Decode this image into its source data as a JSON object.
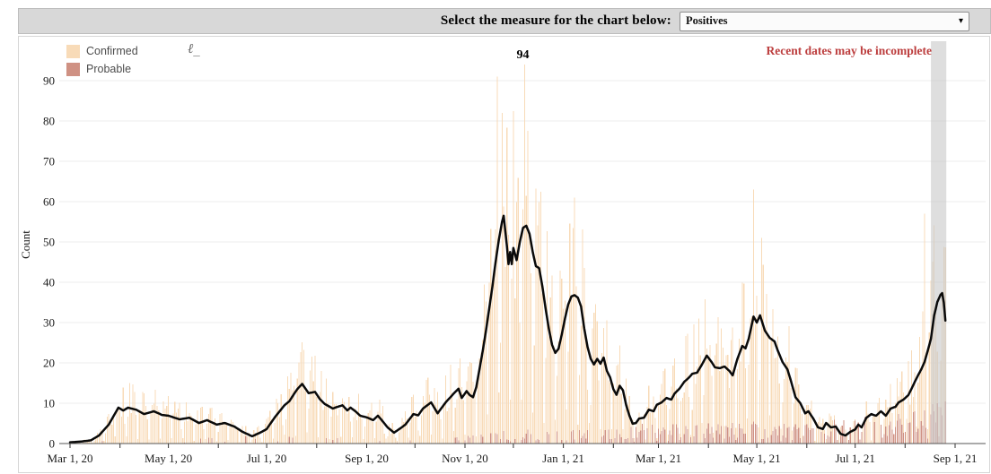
{
  "controls": {
    "label": "Select the measure for the chart below:",
    "dropdown": {
      "value": "Positives",
      "caret_icon": "▾"
    }
  },
  "panel": {
    "legend": [
      {
        "label": "Confirmed",
        "color": "#f8dbb8"
      },
      {
        "label": "Probable",
        "color": "#cf9183"
      }
    ],
    "pencil_glyph": "ℓ_",
    "warning_text": "Recent dates may be incomplete",
    "warning_color": "#bc3d3d"
  },
  "chart_data": {
    "type": "bar",
    "subtype": "daily stacked bars with 7-day average line",
    "title": "Positives",
    "xlabel": "",
    "ylabel": "Count",
    "ylim": [
      0,
      97
    ],
    "y_ticks": [
      0,
      10,
      20,
      30,
      40,
      50,
      60,
      70,
      80,
      90
    ],
    "x_start_date": "2020-03-01",
    "x_end_date": "2021-09-01",
    "x_ticks": [
      {
        "day": 0,
        "label": "Mar 1, 20"
      },
      {
        "day": 31,
        "label": ""
      },
      {
        "day": 61,
        "label": "May 1, 20"
      },
      {
        "day": 92,
        "label": ""
      },
      {
        "day": 122,
        "label": "Jul 1, 20"
      },
      {
        "day": 153,
        "label": ""
      },
      {
        "day": 184,
        "label": "Sep 1, 20"
      },
      {
        "day": 214,
        "label": ""
      },
      {
        "day": 245,
        "label": "Nov 1, 20"
      },
      {
        "day": 275,
        "label": ""
      },
      {
        "day": 306,
        "label": "Jan 1, 21"
      },
      {
        "day": 337,
        "label": ""
      },
      {
        "day": 365,
        "label": "Mar 1, 21"
      },
      {
        "day": 396,
        "label": ""
      },
      {
        "day": 426,
        "label": "May 1, 21"
      },
      {
        "day": 457,
        "label": ""
      },
      {
        "day": 487,
        "label": "Jul 1, 21"
      },
      {
        "day": 518,
        "label": ""
      },
      {
        "day": 549,
        "label": "Sep 1, 21"
      }
    ],
    "grid": true,
    "legend_position": "top-left",
    "series": [
      {
        "name": "Confirmed",
        "type": "bar",
        "color": "#f8dbb8"
      },
      {
        "name": "Probable",
        "type": "bar",
        "color": "#cf9183"
      },
      {
        "name": "7-day average",
        "type": "line",
        "color": "#0a0a0a"
      }
    ],
    "avg_line_points_day_value": [
      [
        0,
        0.3
      ],
      [
        7,
        0.5
      ],
      [
        13,
        0.8
      ],
      [
        18,
        2
      ],
      [
        24,
        4.7
      ],
      [
        30,
        8.9
      ],
      [
        33,
        8.2
      ],
      [
        36,
        8.9
      ],
      [
        41,
        8.4
      ],
      [
        46,
        7.3
      ],
      [
        52,
        8
      ],
      [
        57,
        7.1
      ],
      [
        61,
        6.9
      ],
      [
        68,
        6
      ],
      [
        74,
        6.4
      ],
      [
        80,
        5.1
      ],
      [
        85,
        5.8
      ],
      [
        91,
        4.7
      ],
      [
        96,
        5.1
      ],
      [
        102,
        4.2
      ],
      [
        107,
        2.9
      ],
      [
        113,
        1.8
      ],
      [
        119,
        2.9
      ],
      [
        122,
        3.6
      ],
      [
        127,
        6.5
      ],
      [
        133,
        9.5
      ],
      [
        136,
        10.5
      ],
      [
        141,
        13.5
      ],
      [
        144,
        14.8
      ],
      [
        148,
        12.5
      ],
      [
        152,
        12.8
      ],
      [
        155,
        11
      ],
      [
        158,
        9.8
      ],
      [
        163,
        8.7
      ],
      [
        169,
        9.5
      ],
      [
        172,
        8.2
      ],
      [
        174,
        8.9
      ],
      [
        177,
        8
      ],
      [
        180,
        6.9
      ],
      [
        184,
        6.5
      ],
      [
        188,
        5.8
      ],
      [
        191,
        6.9
      ],
      [
        194,
        5.5
      ],
      [
        197,
        4
      ],
      [
        201,
        2.7
      ],
      [
        205,
        3.8
      ],
      [
        208,
        4.7
      ],
      [
        213,
        7.3
      ],
      [
        216,
        7
      ],
      [
        219,
        8.7
      ],
      [
        224,
        10.2
      ],
      [
        228,
        7.5
      ],
      [
        233,
        10.2
      ],
      [
        238,
        12.4
      ],
      [
        241,
        13.6
      ],
      [
        243,
        11.3
      ],
      [
        246,
        13
      ],
      [
        248,
        12
      ],
      [
        250,
        11.5
      ],
      [
        252,
        14
      ],
      [
        254,
        18.5
      ],
      [
        256,
        23
      ],
      [
        258,
        28
      ],
      [
        260,
        33.5
      ],
      [
        262,
        39
      ],
      [
        264,
        45
      ],
      [
        266,
        50.5
      ],
      [
        268,
        55
      ],
      [
        269,
        56.5
      ],
      [
        271,
        49
      ],
      [
        272,
        44.5
      ],
      [
        273,
        47.5
      ],
      [
        274,
        44.5
      ],
      [
        275,
        48.5
      ],
      [
        277,
        45.5
      ],
      [
        279,
        50
      ],
      [
        281,
        53.5
      ],
      [
        283,
        54
      ],
      [
        285,
        52
      ],
      [
        287,
        47.5
      ],
      [
        289,
        44
      ],
      [
        291,
        43.5
      ],
      [
        293,
        39
      ],
      [
        295,
        33.5
      ],
      [
        297,
        28.5
      ],
      [
        299,
        24.5
      ],
      [
        301,
        22.5
      ],
      [
        303,
        23.5
      ],
      [
        305,
        27
      ],
      [
        307,
        31
      ],
      [
        309,
        34.5
      ],
      [
        311,
        36.5
      ],
      [
        313,
        36.8
      ],
      [
        315,
        36.2
      ],
      [
        317,
        34
      ],
      [
        319,
        28.5
      ],
      [
        321,
        24
      ],
      [
        323,
        21
      ],
      [
        325,
        19.6
      ],
      [
        327,
        21
      ],
      [
        329,
        19.8
      ],
      [
        331,
        21.3
      ],
      [
        333,
        18
      ],
      [
        335,
        16.4
      ],
      [
        337,
        13.5
      ],
      [
        339,
        12.1
      ],
      [
        341,
        14.3
      ],
      [
        343,
        13.2
      ],
      [
        345,
        9.5
      ],
      [
        347,
        6.9
      ],
      [
        349,
        4.9
      ],
      [
        351,
        5.1
      ],
      [
        353,
        6.2
      ],
      [
        356,
        6.4
      ],
      [
        359,
        8.4
      ],
      [
        362,
        8
      ],
      [
        364,
        9.6
      ],
      [
        367,
        10.2
      ],
      [
        370,
        11.3
      ],
      [
        373,
        10.9
      ],
      [
        375,
        12.4
      ],
      [
        378,
        13.6
      ],
      [
        381,
        15.3
      ],
      [
        384,
        16.4
      ],
      [
        386,
        17.3
      ],
      [
        389,
        17.6
      ],
      [
        392,
        19.6
      ],
      [
        395,
        21.8
      ],
      [
        398,
        20.2
      ],
      [
        400,
        18.9
      ],
      [
        403,
        18.7
      ],
      [
        406,
        19.1
      ],
      [
        409,
        18
      ],
      [
        411,
        16.9
      ],
      [
        414,
        21
      ],
      [
        417,
        24.2
      ],
      [
        419,
        23.6
      ],
      [
        421,
        26
      ],
      [
        424,
        31.5
      ],
      [
        426,
        30
      ],
      [
        428,
        31.8
      ],
      [
        431,
        28
      ],
      [
        434,
        26.2
      ],
      [
        437,
        25.3
      ],
      [
        439,
        23.1
      ],
      [
        442,
        20.2
      ],
      [
        445,
        18.4
      ],
      [
        447,
        15.8
      ],
      [
        450,
        11.5
      ],
      [
        453,
        10
      ],
      [
        456,
        7.5
      ],
      [
        458,
        8
      ],
      [
        461,
        6.2
      ],
      [
        464,
        4
      ],
      [
        467,
        3.6
      ],
      [
        469,
        5.1
      ],
      [
        472,
        4
      ],
      [
        475,
        4.2
      ],
      [
        478,
        2.4
      ],
      [
        481,
        2
      ],
      [
        484,
        2.9
      ],
      [
        487,
        3.5
      ],
      [
        489,
        4.7
      ],
      [
        491,
        4
      ],
      [
        494,
        6.4
      ],
      [
        497,
        7.3
      ],
      [
        500,
        6.9
      ],
      [
        503,
        8
      ],
      [
        506,
        6.9
      ],
      [
        509,
        8.7
      ],
      [
        512,
        9.1
      ],
      [
        514,
        10.2
      ],
      [
        517,
        10.9
      ],
      [
        520,
        12
      ],
      [
        522,
        13.6
      ],
      [
        524,
        15.3
      ],
      [
        526,
        16.9
      ],
      [
        528,
        18.4
      ],
      [
        530,
        20.2
      ],
      [
        532,
        23
      ],
      [
        534,
        26
      ],
      [
        536,
        31.8
      ],
      [
        538,
        35.1
      ],
      [
        540,
        36.9
      ],
      [
        541,
        37.3
      ],
      [
        542,
        35
      ],
      [
        543,
        30.5
      ]
    ],
    "notable_confirmed_bars": [
      {
        "day": 265,
        "value": 91
      },
      {
        "day": 268,
        "value": 82
      },
      {
        "day": 282,
        "value": 94
      },
      {
        "day": 313,
        "value": 61
      },
      {
        "day": 424,
        "value": 63
      },
      {
        "day": 530,
        "value": 57
      }
    ],
    "notable_probable_bars": [
      {
        "day": 536,
        "value": 8
      },
      {
        "day": 538,
        "value": 10
      },
      {
        "day": 540,
        "value": 9
      },
      {
        "day": 541,
        "value": 7
      }
    ],
    "probable_envelope_day_value": [
      [
        0,
        0.4
      ],
      [
        100,
        0.7
      ],
      [
        140,
        0.8
      ],
      [
        200,
        0.4
      ],
      [
        240,
        1.0
      ],
      [
        280,
        1.4
      ],
      [
        310,
        1.6
      ],
      [
        340,
        2.0
      ],
      [
        400,
        2.2
      ],
      [
        450,
        2.2
      ],
      [
        480,
        2.6
      ],
      [
        510,
        3.0
      ],
      [
        530,
        4.0
      ],
      [
        543,
        5.5
      ]
    ],
    "peak_annotation": {
      "label": "94",
      "day": 282,
      "value": 94,
      "date": "2020-12-08"
    },
    "incomplete_band_days": [
      534,
      543.5
    ],
    "incomplete_band_color": "rgba(201,201,201,0.62)",
    "last_bar_day": 543,
    "axis_text_color": "#1a1a1a",
    "gridline_color": "#ededed",
    "axis_line_color": "#555555"
  }
}
